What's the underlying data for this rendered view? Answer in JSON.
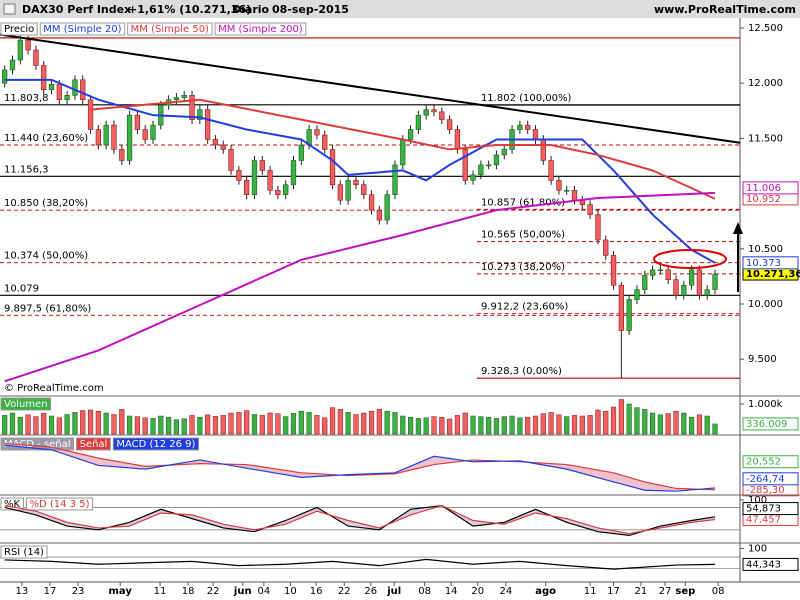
{
  "header": {
    "title": "DAX30 Perf Index",
    "change": "+1,61% (10.271,36)",
    "period": "Diario",
    "date": "08-sep-2015",
    "site": "www.ProRealTime.com"
  },
  "copyright": "© ProRealTime.com",
  "chart_data": [
    {
      "type": "candlestick",
      "price_name": "Precio",
      "up_color": "#3cb043",
      "down_color": "#f06060",
      "xlim": [
        -0.6,
        94.2
      ],
      "xticks": [
        {
          "value": 2.2,
          "label": "13"
        },
        {
          "value": 5.8,
          "label": "17"
        },
        {
          "value": 9.4,
          "label": "23"
        },
        {
          "value": 14.8,
          "label": "may"
        },
        {
          "value": 19.9,
          "label": "11"
        },
        {
          "value": 23.5,
          "label": "18"
        },
        {
          "value": 26.7,
          "label": "22"
        },
        {
          "value": 30.5,
          "label": "jun"
        },
        {
          "value": 33.2,
          "label": "04"
        },
        {
          "value": 36.6,
          "label": "10"
        },
        {
          "value": 39.9,
          "label": "16"
        },
        {
          "value": 43.5,
          "label": "22"
        },
        {
          "value": 46.9,
          "label": "26"
        },
        {
          "value": 49.9,
          "label": "jul"
        },
        {
          "value": 53.8,
          "label": "08"
        },
        {
          "value": 57.2,
          "label": "14"
        },
        {
          "value": 60.6,
          "label": "20"
        },
        {
          "value": 64.2,
          "label": "24"
        },
        {
          "value": 69.3,
          "label": "ago"
        },
        {
          "value": 75,
          "label": "11"
        },
        {
          "value": 78,
          "label": "17"
        },
        {
          "value": 81.5,
          "label": "21"
        },
        {
          "value": 84.6,
          "label": "27"
        },
        {
          "value": 87.2,
          "label": "sep"
        },
        {
          "value": 91.4,
          "label": "08"
        }
      ],
      "ylim": [
        9176,
        12572
      ],
      "yticks": [
        {
          "value": 12500,
          "label": "12.500"
        },
        {
          "value": 12000,
          "label": "12.000"
        },
        {
          "value": 11500,
          "label": "11.500"
        },
        {
          "value": 10500,
          "label": "10.500"
        },
        {
          "value": 10000,
          "label": "10.000"
        },
        {
          "value": 9500,
          "label": "9.500"
        }
      ],
      "open": [
        12000,
        12120,
        12210,
        12390,
        12300,
        12160,
        11940,
        11990,
        11850,
        11890,
        12030,
        11850,
        11580,
        11440,
        11620,
        11400,
        11300,
        11710,
        11580,
        11490,
        11620,
        11800,
        11850,
        11870,
        11890,
        11670,
        11760,
        11490,
        11440,
        11400,
        11210,
        11120,
        10990,
        11300,
        11210,
        11030,
        10990,
        11080,
        11300,
        11440,
        11580,
        11530,
        11400,
        11080,
        10940,
        11120,
        11080,
        10990,
        10850,
        10760,
        10990,
        11260,
        11490,
        11580,
        11710,
        11760,
        11740,
        11670,
        11580,
        11400,
        11120,
        11170,
        11260,
        11260,
        11350,
        11400,
        11580,
        11620,
        11580,
        11490,
        11300,
        11120,
        11030,
        11030,
        10940,
        10900,
        10810,
        10580,
        10440,
        10170,
        9760,
        10040,
        10130,
        10260,
        10310,
        10310,
        10220,
        10080,
        10170,
        10310,
        10080,
        10130
      ],
      "high": [
        12160,
        12250,
        12430,
        12430,
        12340,
        12200,
        12030,
        12030,
        11930,
        12070,
        12070,
        11890,
        11620,
        11660,
        11660,
        11440,
        11750,
        11750,
        11620,
        11660,
        11840,
        11890,
        11910,
        11930,
        11930,
        11800,
        11800,
        11530,
        11480,
        11440,
        11250,
        11160,
        11340,
        11340,
        11250,
        11070,
        11120,
        11340,
        11480,
        11620,
        11620,
        11570,
        11440,
        11120,
        11160,
        11160,
        11120,
        11030,
        10890,
        11030,
        11300,
        11530,
        11620,
        11750,
        11800,
        11800,
        11780,
        11710,
        11620,
        11440,
        11210,
        11300,
        11300,
        11390,
        11440,
        11620,
        11660,
        11660,
        11620,
        11530,
        11340,
        11160,
        11070,
        11070,
        10980,
        10940,
        10850,
        10620,
        10480,
        10200,
        10080,
        10170,
        10300,
        10350,
        10350,
        10350,
        10260,
        10210,
        10350,
        10350,
        10170,
        10310
      ],
      "low": [
        11960,
        12080,
        12170,
        12260,
        12120,
        11900,
        11900,
        11810,
        11810,
        11850,
        11810,
        11540,
        11400,
        11400,
        11360,
        11260,
        11260,
        11540,
        11450,
        11450,
        11580,
        11760,
        11810,
        11830,
        11630,
        11630,
        11450,
        11400,
        11360,
        11170,
        11080,
        10950,
        10950,
        11170,
        10990,
        10950,
        10950,
        11040,
        11260,
        11400,
        11490,
        11360,
        11040,
        10900,
        10900,
        11040,
        10950,
        10810,
        10720,
        10720,
        10950,
        11220,
        11450,
        11540,
        11670,
        11700,
        11630,
        11540,
        11360,
        11080,
        11080,
        11130,
        11220,
        11220,
        11310,
        11360,
        11540,
        11540,
        11450,
        11260,
        11080,
        10990,
        10990,
        10900,
        10860,
        10770,
        10540,
        10400,
        10130,
        9328.3,
        9720,
        10000,
        10090,
        10220,
        10270,
        10180,
        10040,
        10040,
        10130,
        10040,
        10040,
        10090
      ],
      "close": [
        12120,
        12210,
        12390,
        12300,
        12160,
        11940,
        11990,
        11850,
        11890,
        12030,
        11850,
        11580,
        11440,
        11620,
        11400,
        11300,
        11710,
        11580,
        11490,
        11620,
        11800,
        11850,
        11870,
        11890,
        11670,
        11760,
        11490,
        11440,
        11400,
        11210,
        11120,
        10990,
        11300,
        11210,
        11030,
        10990,
        11080,
        11300,
        11440,
        11580,
        11530,
        11400,
        11080,
        10940,
        11120,
        11080,
        10990,
        10850,
        10760,
        10990,
        11260,
        11490,
        11580,
        11710,
        11760,
        11740,
        11670,
        11580,
        11400,
        11120,
        11170,
        11260,
        11260,
        11350,
        11400,
        11580,
        11620,
        11580,
        11490,
        11300,
        11120,
        11030,
        11030,
        10940,
        10900,
        10810,
        10580,
        10440,
        10170,
        9760,
        10040,
        10130,
        10260,
        10310,
        10310,
        10220,
        10080,
        10170,
        10310,
        10080,
        10130,
        10271.36
      ],
      "series": [
        {
          "name": "MM (Simple 20)",
          "color": "#1f3fe0",
          "x": [
            0,
            6,
            12,
            19,
            25,
            31,
            38,
            42,
            44,
            51,
            54,
            57,
            63,
            70,
            74,
            78,
            83,
            88,
            91
          ],
          "values": [
            12030,
            12030,
            11850,
            11710,
            11690,
            11580,
            11490,
            11300,
            11170,
            11210,
            11120,
            11260,
            11490,
            11490,
            11490,
            11210,
            10810,
            10490,
            10373
          ]
        },
        {
          "name": "MM (Simple 50)",
          "color": "#e03a3a",
          "x": [
            11,
            25,
            38,
            51,
            57,
            63,
            70,
            76,
            83,
            91
          ],
          "values": [
            11760,
            11850,
            11670,
            11490,
            11400,
            11440,
            11440,
            11350,
            11210,
            10952
          ]
        },
        {
          "name": "MM (Simple 200)",
          "color": "#c010c0",
          "x": [
            0,
            12,
            25,
            38,
            51,
            63,
            76,
            91
          ],
          "values": [
            9300,
            9580,
            9990,
            10400,
            10625,
            10850,
            10960,
            11006
          ]
        }
      ],
      "trendline": {
        "color": "#000000",
        "x": [
          -0.6,
          94.2
        ],
        "values": [
          12440,
          11460
        ]
      },
      "levels": [
        {
          "value": 12410,
          "color": "#c00000",
          "dash": false
        },
        {
          "value": 11803.8,
          "label": "11.803,8",
          "color": "#000000",
          "dash": false
        },
        {
          "value": 11440,
          "label": "11.440 (23,60%)",
          "color": "#c00000",
          "dash": true
        },
        {
          "value": 11156.3,
          "label": "11.156,3",
          "color": "#000000",
          "dash": false
        },
        {
          "value": 10850,
          "label": "10.850 (38,20%)",
          "color": "#c00000",
          "dash": true
        },
        {
          "value": 10374,
          "label": "10.374 (50,00%)",
          "color": "#c00000",
          "dash": true
        },
        {
          "value": 10079,
          "label": "10.079",
          "color": "#000000",
          "dash": false
        },
        {
          "value": 9897.5,
          "label": "9.897,5 (61,80%)",
          "color": "#c00000",
          "dash": true
        },
        {
          "value": 11802,
          "label": "11.802 (100,00%)",
          "color": "#000000",
          "dash": false,
          "x0": 60.5
        },
        {
          "value": 10857,
          "label": "10.857 (61,80%)",
          "color": "#c00000",
          "dash": true,
          "x0": 60.5
        },
        {
          "value": 10565,
          "label": "10.565 (50,00%)",
          "color": "#c00000",
          "dash": true,
          "x0": 60.5
        },
        {
          "value": 10273,
          "label": "10.273 (38,20%)",
          "color": "#c00000",
          "dash": true,
          "x0": 60.5
        },
        {
          "value": 9912.2,
          "label": "9.912,2 (23,60%)",
          "color": "#c00000",
          "dash": true,
          "x0": 60.5
        },
        {
          "value": 9328.3,
          "label": "9.328,3 (0,00%)",
          "color": "#c00000",
          "dash": false,
          "x0": 60.5
        }
      ],
      "tags": [
        {
          "value": 11006,
          "label": "11.006",
          "color": "#c010c0",
          "fill": "#ffffff"
        },
        {
          "value": 10952,
          "label": "10.952",
          "color": "#e03a3a",
          "fill": "#ffffff"
        },
        {
          "value": 10373,
          "label": "10.373",
          "color": "#1f3fe0",
          "fill": "#ffffff"
        },
        {
          "value": 10271.36,
          "label": "10.271,36",
          "color": "#000000",
          "fill": "#ffff00"
        }
      ]
    },
    {
      "type": "volume",
      "title": "Volumen",
      "title_color": "#3cb043",
      "values": [
        620,
        700,
        560,
        640,
        580,
        690,
        600,
        540,
        650,
        720,
        780,
        800,
        760,
        700,
        650,
        820,
        600,
        580,
        540,
        520,
        600,
        560,
        480,
        510,
        620,
        560,
        640,
        590,
        620,
        700,
        720,
        780,
        650,
        620,
        700,
        680,
        580,
        690,
        760,
        720,
        620,
        540,
        880,
        820,
        720,
        650,
        700,
        760,
        820,
        760,
        720,
        600,
        560,
        520,
        540,
        580,
        560,
        500,
        620,
        700,
        600,
        580,
        560,
        520,
        580,
        600,
        540,
        560,
        600,
        680,
        720,
        640,
        580,
        620,
        600,
        620,
        800,
        760,
        900,
        1150,
        1000,
        880,
        820,
        700,
        640,
        680,
        760,
        700,
        560,
        640,
        600,
        336.009
      ],
      "ylim": [
        0,
        1200
      ],
      "yticks": [
        {
          "value": 1000,
          "label": "1.000k"
        }
      ],
      "tags": [
        {
          "value": 336.009,
          "label": "336.009",
          "color": "#3cb043",
          "fill": "#ffffff"
        }
      ]
    },
    {
      "type": "oscillator",
      "band_name": "MACD - señal",
      "band_color": "#e8a6b8",
      "series": [
        {
          "name": "Señal",
          "color": "#e03a3a",
          "x": [
            0,
            6,
            12,
            18,
            25,
            31,
            38,
            44,
            50,
            55,
            60,
            66,
            72,
            78,
            82,
            86,
            91
          ],
          "values": [
            220,
            180,
            60,
            -30,
            0,
            -10,
            -100,
            -130,
            -110,
            -10,
            40,
            20,
            -10,
            -100,
            -200,
            -270,
            -285.3
          ]
        },
        {
          "name": "MACD (12 26 9)",
          "color": "#1f3fe0",
          "x": [
            0,
            6,
            12,
            18,
            25,
            31,
            38,
            44,
            50,
            55,
            60,
            66,
            72,
            78,
            82,
            86,
            91
          ],
          "values": [
            200,
            150,
            -20,
            -60,
            40,
            -50,
            -150,
            -120,
            -100,
            80,
            20,
            30,
            -60,
            -200,
            -290,
            -300,
            -264.74
          ]
        }
      ],
      "ylim": [
        -320,
        290
      ],
      "tags": [
        {
          "value": 20.552,
          "label": "20,552",
          "color": "#3cb043",
          "fill": "#ffffff"
        },
        {
          "value": -264.74,
          "label": "-264,74",
          "color": "#1f3fe0",
          "fill": "#ffffff"
        },
        {
          "value": -285.3,
          "label": "-285,30",
          "color": "#e03a3a",
          "fill": "#ffffff"
        }
      ]
    },
    {
      "type": "oscillator",
      "band_color": "#c9b6dc",
      "series": [
        {
          "name": "%K",
          "color": "#000000",
          "x": [
            0,
            4,
            8,
            12,
            16,
            20,
            24,
            28,
            32,
            36,
            40,
            44,
            48,
            52,
            56,
            60,
            64,
            68,
            72,
            76,
            80,
            84,
            88,
            91
          ],
          "values": [
            80,
            60,
            30,
            20,
            40,
            75,
            50,
            25,
            15,
            45,
            80,
            30,
            20,
            75,
            85,
            30,
            40,
            75,
            40,
            15,
            5,
            30,
            45,
            54.873
          ]
        },
        {
          "name": "%D (14 3 5)",
          "color": "#e03a3a",
          "x": [
            0,
            4,
            8,
            12,
            16,
            20,
            24,
            28,
            32,
            36,
            40,
            44,
            48,
            52,
            56,
            60,
            64,
            68,
            72,
            76,
            80,
            84,
            88,
            91
          ],
          "values": [
            85,
            70,
            40,
            25,
            30,
            65,
            60,
            35,
            20,
            35,
            70,
            45,
            25,
            60,
            85,
            45,
            35,
            65,
            50,
            25,
            10,
            25,
            40,
            47.457
          ]
        }
      ],
      "ylim": [
        -10,
        108
      ],
      "yticks": [
        100
      ],
      "ref_lines": [
        80,
        20
      ],
      "tags": [
        {
          "value": 54.873,
          "label": "54,873",
          "color": "#000000",
          "fill": "#ffffff"
        },
        {
          "value": 47.457,
          "label": "47,457",
          "color": "#e03a3a",
          "fill": "#ffffff"
        }
      ]
    },
    {
      "type": "oscillator",
      "series": [
        {
          "name": "RSI (14)",
          "color": "#000000",
          "x": [
            0,
            6,
            12,
            18,
            24,
            30,
            36,
            42,
            48,
            54,
            60,
            66,
            72,
            78,
            82,
            86,
            91
          ],
          "values": [
            60,
            55,
            45,
            50,
            55,
            40,
            45,
            55,
            40,
            62,
            45,
            55,
            40,
            28,
            35,
            42,
            44.343
          ]
        }
      ],
      "ylim": [
        -10,
        112
      ],
      "yticks": [
        100
      ],
      "ref_lines": [
        70,
        30
      ],
      "tags": [
        {
          "value": 44.343,
          "label": "44,343",
          "color": "#000000",
          "fill": "#ffffff"
        }
      ]
    }
  ]
}
